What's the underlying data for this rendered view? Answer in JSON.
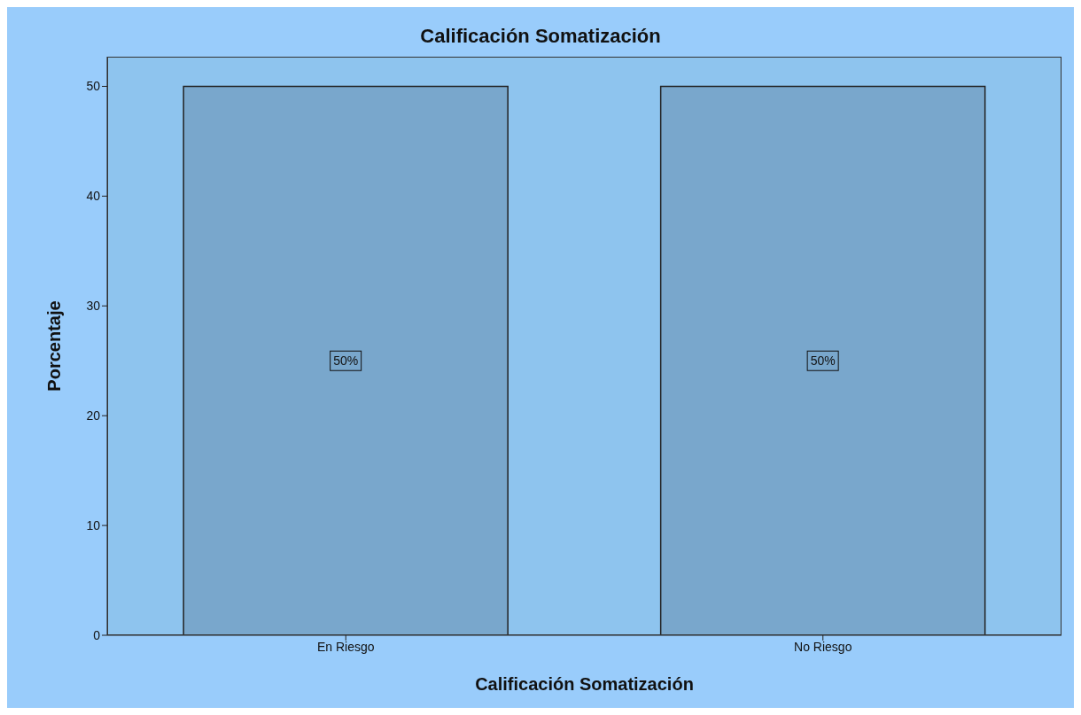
{
  "chart_data": {
    "type": "bar",
    "title": "Calificación Somatización",
    "xlabel": "Calificación Somatización",
    "ylabel": "Porcentaje",
    "categories": [
      "En Riesgo",
      "No Riesgo"
    ],
    "values": [
      50,
      50
    ],
    "color": "#79a7cc",
    "value_labels": [
      "50%",
      "50%"
    ],
    "ylim": [
      0,
      52.7
    ],
    "yticks": [
      0,
      10,
      20,
      30,
      40,
      50
    ],
    "grid": false
  }
}
